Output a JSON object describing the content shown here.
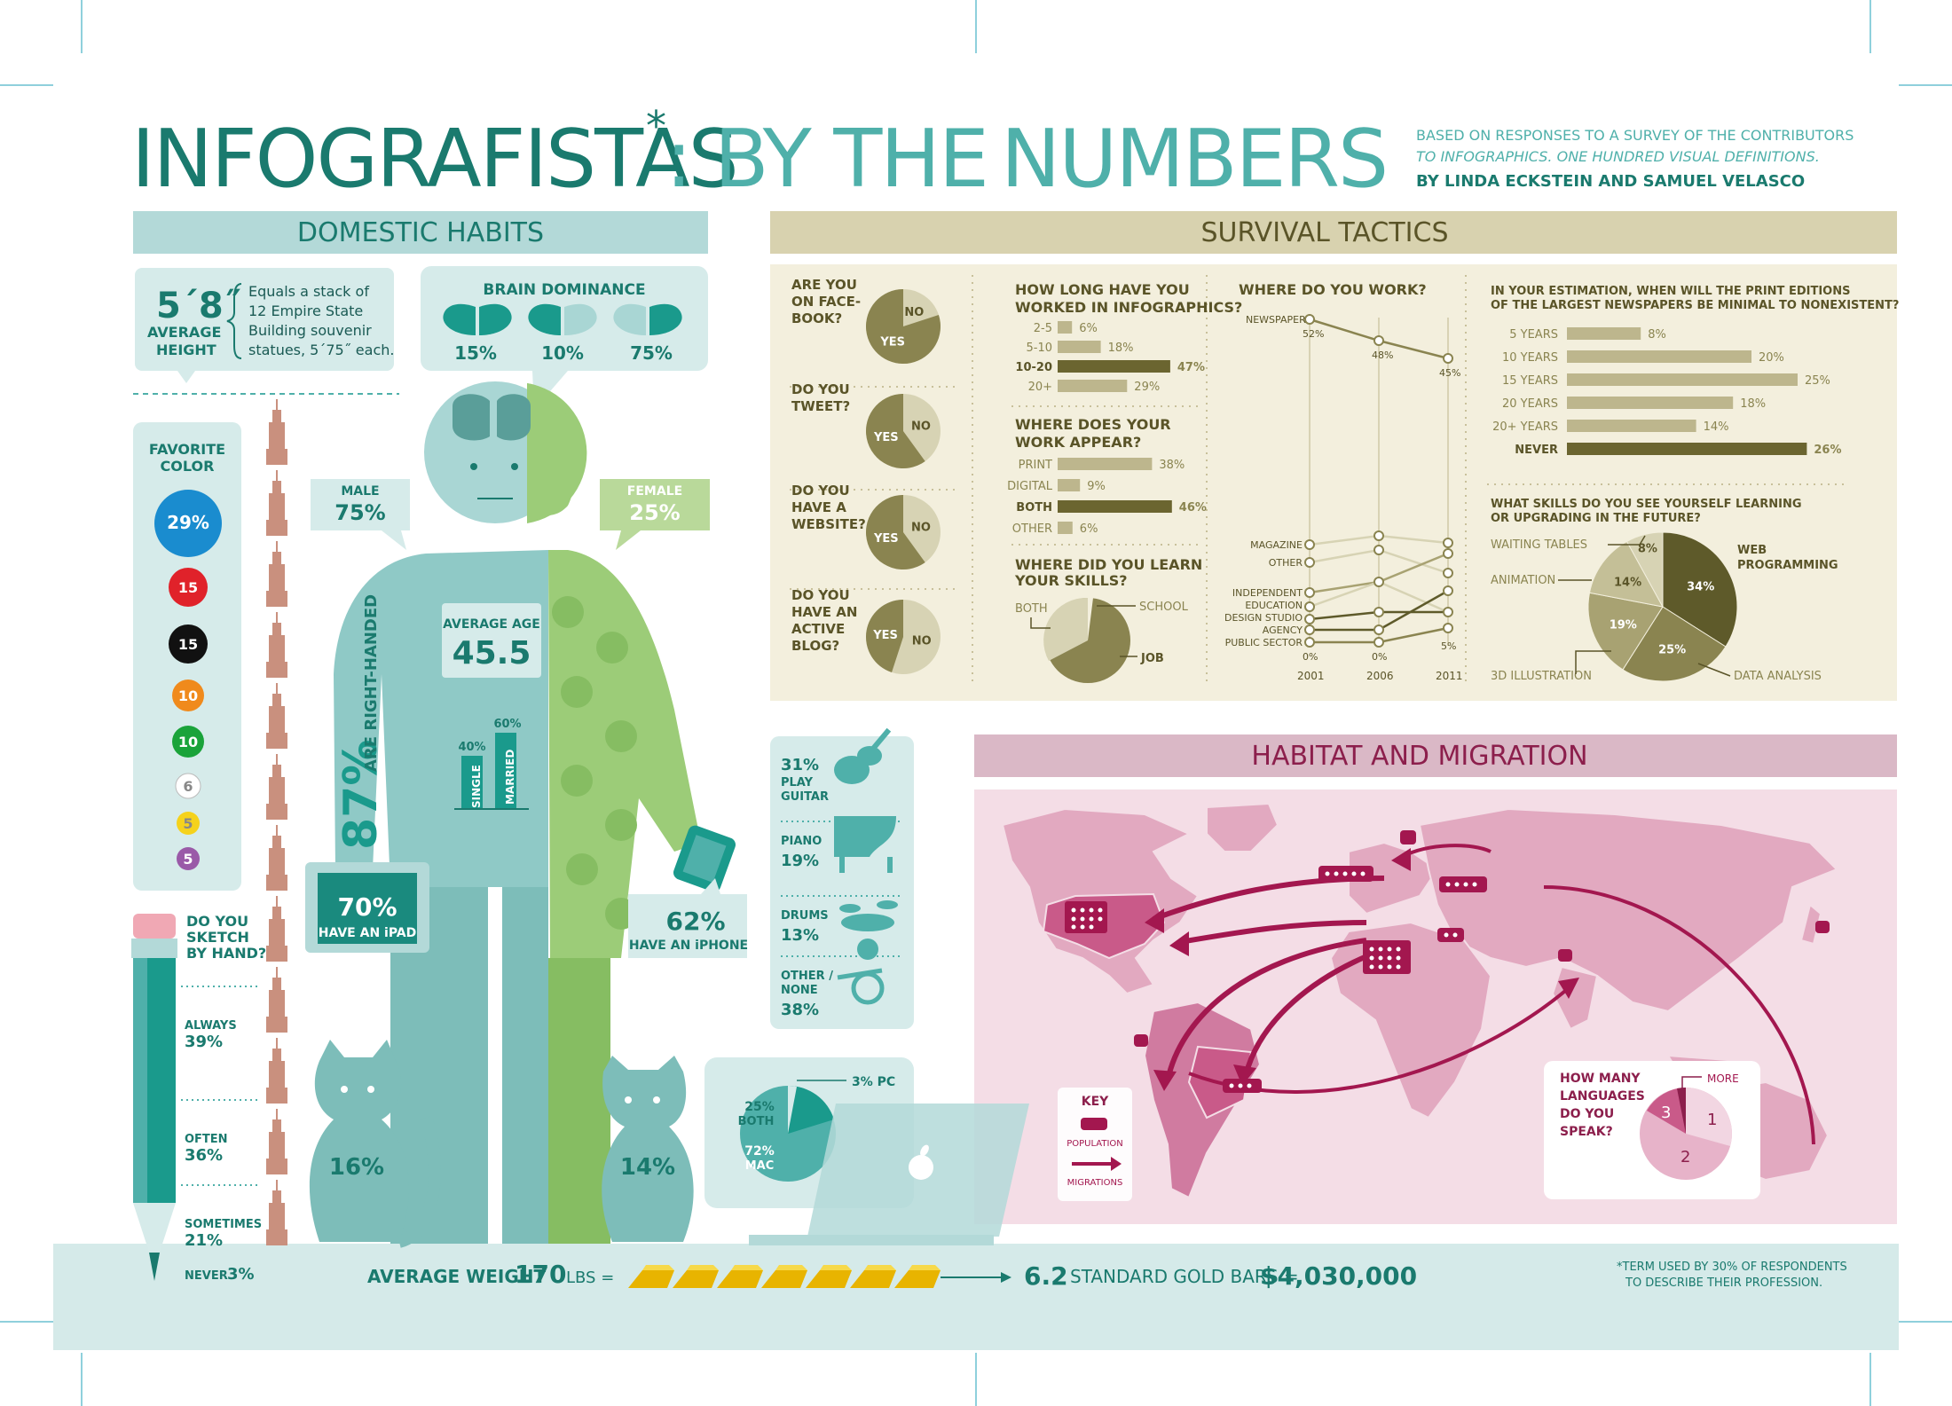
{
  "title": {
    "main": "INFOGRAFISTAS",
    "asterisk": "*",
    "rest": ": BY THE",
    "numbers": "NUMBERS"
  },
  "byline": {
    "line1": "BASED ON RESPONSES TO A SURVEY OF THE CONTRIBUTORS",
    "line2": "TO INFOGRAPHICS. ONE HUNDRED VISUAL DEFINITIONS.",
    "line3": "BY LINDA ECKSTEIN AND SAMUEL VELASCO"
  },
  "sections": {
    "domestic": "DOMESTIC HABITS",
    "survival": "SURVIVAL TACTICS",
    "habitat": "HABITAT AND MIGRATION"
  },
  "height": {
    "value": "5´8˝",
    "label1": "AVERAGE",
    "label2": "HEIGHT",
    "note1": "Equals a stack of",
    "note2": "12 Empire State",
    "note3": "Building souvenir",
    "note4": "statues, 5´75˝ each."
  },
  "brain": {
    "title": "BRAIN DOMINANCE",
    "values": [
      "15%",
      "10%",
      "75%"
    ]
  },
  "favorite_color": {
    "title1": "FAVORITE",
    "title2": "COLOR",
    "items": [
      {
        "value": "29%",
        "color": "#1a8ccf"
      },
      {
        "value": "15",
        "color": "#e0222a"
      },
      {
        "value": "15",
        "color": "#111111"
      },
      {
        "value": "10",
        "color": "#f08a1c"
      },
      {
        "value": "10",
        "color": "#1aa33a"
      },
      {
        "value": "6",
        "color": "#ffffff"
      },
      {
        "value": "5",
        "color": "#f5d21c"
      },
      {
        "value": "5",
        "color": "#9a5aa8"
      }
    ]
  },
  "gender": {
    "male_label": "MALE",
    "male_value": "75%",
    "female_label": "FEMALE",
    "female_value": "25%"
  },
  "age": {
    "label": "AVERAGE AGE",
    "value": "45.5"
  },
  "marital": {
    "single_value": "40%",
    "single_label": "SINGLE",
    "married_value": "60%",
    "married_label": "MARRIED"
  },
  "right_handed": {
    "value": "87%",
    "label": "ARE RIGHT-HANDED"
  },
  "ipad": {
    "value": "70%",
    "label": "HAVE AN iPAD"
  },
  "iphone": {
    "value": "62%",
    "label": "HAVE AN iPHONE"
  },
  "pets": {
    "cat": "16%",
    "dog": "14%"
  },
  "sketch": {
    "q1": "DO YOU",
    "q2": "SKETCH",
    "q3": "BY HAND?",
    "items": [
      {
        "label": "ALWAYS",
        "value": "39%"
      },
      {
        "label": "OFTEN",
        "value": "36%"
      },
      {
        "label": "SOMETIMES",
        "value": "21%"
      },
      {
        "label": "NEVER",
        "value": "3%"
      }
    ]
  },
  "music": [
    {
      "value": "31%",
      "label1": "PLAY",
      "label2": "GUITAR"
    },
    {
      "value": "19%",
      "label1": "PIANO",
      "label2": ""
    },
    {
      "value": "13%",
      "label1": "DRUMS",
      "label2": ""
    },
    {
      "value": "38%",
      "label1": "OTHER /",
      "label2": "NONE"
    }
  ],
  "computer": {
    "pc": "3% PC",
    "both_value": "25%",
    "both_label": "BOTH",
    "mac_value": "72%",
    "mac_label": "MAC"
  },
  "weight": {
    "label": "AVERAGE WEIGHT",
    "value": "170",
    "unit": "LBS =",
    "bars_value": "6.2",
    "bars_label": "STANDARD GOLD BARS =",
    "money": "$4,030,000"
  },
  "footnote": {
    "line1": "*TERM USED BY 30% OF RESPONDENTS",
    "line2": "TO DESCRIBE THEIR PROFESSION."
  },
  "yesno": [
    {
      "q": [
        "ARE YOU",
        "ON FACE-",
        "BOOK?"
      ],
      "yes": "YES",
      "no": "NO",
      "yes_share": 0.8
    },
    {
      "q": [
        "DO YOU",
        "TWEET?"
      ],
      "yes": "YES",
      "no": "NO",
      "yes_share": 0.6
    },
    {
      "q": [
        "DO YOU",
        "HAVE A",
        "WEBSITE?"
      ],
      "yes": "YES",
      "no": "NO",
      "yes_share": 0.6
    },
    {
      "q": [
        "DO YOU",
        "HAVE AN",
        "ACTIVE",
        "BLOG?"
      ],
      "yes": "YES",
      "no": "NO",
      "yes_share": 0.45
    }
  ],
  "how_long": {
    "title1": "HOW LONG HAVE YOU",
    "title2": "WORKED IN INFOGRAPHICS?",
    "rows": [
      {
        "label": "2-5",
        "value": 6,
        "text": "6%"
      },
      {
        "label": "5-10",
        "value": 18,
        "text": "18%"
      },
      {
        "label": "10-20",
        "value": 47,
        "text": "47%"
      },
      {
        "label": "20+",
        "value": 29,
        "text": "29%"
      }
    ]
  },
  "appear": {
    "title1": "WHERE DOES YOUR",
    "title2": "WORK APPEAR?",
    "rows": [
      {
        "label": "PRINT",
        "value": 38,
        "text": "38%"
      },
      {
        "label": "DIGITAL",
        "value": 9,
        "text": "9%"
      },
      {
        "label": "BOTH",
        "value": 46,
        "text": "46%"
      },
      {
        "label": "OTHER",
        "value": 6,
        "text": "6%"
      }
    ]
  },
  "learn": {
    "title1": "WHERE DID YOU LEARN",
    "title2": "YOUR SKILLS?",
    "both": "BOTH",
    "school": "SCHOOL",
    "job": "JOB"
  },
  "work": {
    "title": "WHERE DO YOU WORK?",
    "years": [
      "2001",
      "2006",
      "2011"
    ],
    "labels": [
      "NEWSPAPER",
      "MAGAZINE",
      "OTHER",
      "INDEPENDENT",
      "EDUCATION",
      "DESIGN STUDIO",
      "AGENCY",
      "PUBLIC SECTOR"
    ],
    "newspaper_values": [
      "52%",
      "48%",
      "45%"
    ],
    "public_values": [
      "0%",
      "0%",
      "5%"
    ]
  },
  "print_end": {
    "title1": "IN YOUR ESTIMATION, WHEN WILL THE PRINT EDITIONS",
    "title2": "OF THE LARGEST NEWSPAPERS BE MINIMAL TO NONEXISTENT?",
    "rows": [
      {
        "label": "5 YEARS",
        "value": 8,
        "text": "8%"
      },
      {
        "label": "10 YEARS",
        "value": 20,
        "text": "20%"
      },
      {
        "label": "15 YEARS",
        "value": 25,
        "text": "25%"
      },
      {
        "label": "20 YEARS",
        "value": 18,
        "text": "18%"
      },
      {
        "label": "20+ YEARS",
        "value": 14,
        "text": "14%"
      },
      {
        "label": "NEVER",
        "value": 26,
        "text": "26%"
      }
    ]
  },
  "skills": {
    "title1": "WHAT SKILLS DO YOU SEE YOURSELF LEARNING",
    "title2": "OR UPGRADING IN THE FUTURE?",
    "slices": [
      {
        "label": "WEB PROGRAMMING",
        "label1": "WEB",
        "label2": "PROGRAMMING",
        "value": 34,
        "text": "34%",
        "color": "#5e5a2a"
      },
      {
        "label": "DATA ANALYSIS",
        "value": 25,
        "text": "25%",
        "color": "#8a8450"
      },
      {
        "label": "3D ILLUSTRATION",
        "value": 19,
        "text": "19%",
        "color": "#a8a272"
      },
      {
        "label": "ANIMATION",
        "value": 14,
        "text": "14%",
        "color": "#c4bf97"
      },
      {
        "label": "WAITING TABLES",
        "value": 8,
        "text": "8%",
        "color": "#d7d3b4"
      }
    ]
  },
  "map_key": {
    "title": "KEY",
    "population": "POPULATION",
    "migrations": "MIGRATIONS"
  },
  "languages": {
    "q1": "HOW MANY",
    "q2": "LANGUAGES",
    "q3": "DO YOU",
    "q4": "SPEAK?",
    "more": "MORE",
    "one": "1",
    "two": "2",
    "three": "3"
  }
}
